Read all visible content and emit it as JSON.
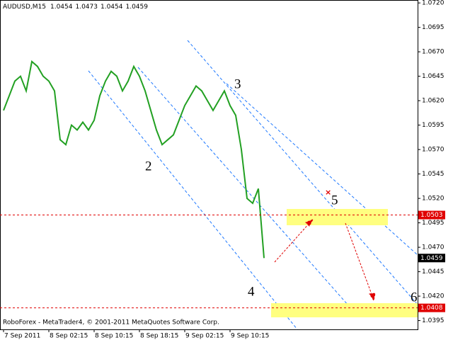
{
  "chart_data": {
    "type": "line",
    "symbol": "AUDUSD,M15",
    "quote": [
      1.0454,
      1.0473,
      1.0454,
      1.0459
    ],
    "footer": "RoboForex - MetaTrader4, © 2001-2011 MetaQuotes Software Corp.",
    "color": "#22a022",
    "categories": [
      "7 Sep 2011",
      null,
      null,
      null,
      null,
      null,
      null,
      null,
      "8 Sep 02:15",
      null,
      null,
      null,
      null,
      null,
      null,
      null,
      "8 Sep 10:15",
      null,
      null,
      null,
      null,
      null,
      null,
      null,
      "8 Sep 18:15",
      null,
      null,
      null,
      null,
      null,
      null,
      null,
      "9 Sep 02:15",
      null,
      null,
      null,
      null,
      null,
      null,
      null,
      "9 Sep 10:15",
      null,
      null,
      null,
      null,
      null,
      null
    ],
    "values": [
      1.061,
      1.0625,
      1.064,
      1.0645,
      1.063,
      1.066,
      1.0655,
      1.0645,
      1.064,
      1.063,
      1.058,
      1.0575,
      1.0595,
      1.059,
      1.0598,
      1.059,
      1.06,
      1.0625,
      1.064,
      1.065,
      1.0645,
      1.063,
      1.064,
      1.0655,
      1.0645,
      1.063,
      1.061,
      1.059,
      1.0575,
      1.058,
      1.0585,
      1.06,
      1.0615,
      1.0625,
      1.0635,
      1.063,
      1.062,
      1.061,
      1.062,
      1.063,
      1.0615,
      1.0605,
      1.057,
      1.052,
      1.0515,
      1.053,
      1.0459
    ],
    "ylim": [
      1.0386,
      1.0723
    ],
    "yticks": [
      {
        "value": 1.072,
        "label": "1.0720"
      },
      {
        "value": 1.0695,
        "label": "1.0695"
      },
      {
        "value": 1.067,
        "label": "1.0670"
      },
      {
        "value": 1.0645,
        "label": "1.0645"
      },
      {
        "value": 1.062,
        "label": "1.0620"
      },
      {
        "value": 1.0595,
        "label": "1.0595"
      },
      {
        "value": 1.057,
        "label": "1.0570"
      },
      {
        "value": 1.0545,
        "label": "1.0545"
      },
      {
        "value": 1.052,
        "label": "1.0520"
      },
      {
        "value": 1.0495,
        "label": "1.0495"
      },
      {
        "value": 1.047,
        "label": "1.0470"
      },
      {
        "value": 1.0445,
        "label": "1.0445"
      },
      {
        "value": 1.042,
        "label": "1.0420"
      },
      {
        "value": 1.0395,
        "label": "1.0395"
      }
    ],
    "price_markers": [
      {
        "value": 1.0503,
        "color": "#e00000",
        "line": true
      },
      {
        "value": 1.0459,
        "color": "#000000",
        "line": false
      },
      {
        "value": 1.0408,
        "color": "#e00000",
        "line": true
      }
    ],
    "annotations": [
      "2",
      "3",
      "4",
      "5",
      "6"
    ]
  }
}
